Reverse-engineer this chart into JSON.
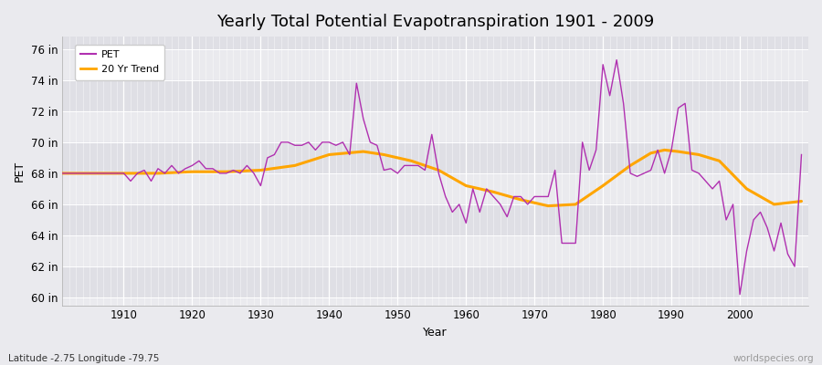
{
  "title": "Yearly Total Potential Evapotranspiration 1901 - 2009",
  "xlabel": "Year",
  "ylabel": "PET",
  "subtitle_left": "Latitude -2.75 Longitude -79.75",
  "subtitle_right": "worldspecies.org",
  "pet_color": "#b030b0",
  "trend_color": "#ffa500",
  "background_color": "#eaeaee",
  "plot_bg_color": "#eaeaee",
  "grid_color": "#ffffff",
  "ylim": [
    59.5,
    76.8
  ],
  "yticks": [
    60,
    62,
    64,
    66,
    68,
    70,
    72,
    74,
    76
  ],
  "ytick_labels": [
    "60 in",
    "62 in",
    "64 in",
    "66 in",
    "68 in",
    "70 in",
    "72 in",
    "74 in",
    "76 in"
  ],
  "years": [
    1901,
    1902,
    1903,
    1904,
    1905,
    1906,
    1907,
    1908,
    1909,
    1910,
    1911,
    1912,
    1913,
    1914,
    1915,
    1916,
    1917,
    1918,
    1919,
    1920,
    1921,
    1922,
    1923,
    1924,
    1925,
    1926,
    1927,
    1928,
    1929,
    1930,
    1931,
    1932,
    1933,
    1934,
    1935,
    1936,
    1937,
    1938,
    1939,
    1940,
    1941,
    1942,
    1943,
    1944,
    1945,
    1946,
    1947,
    1948,
    1949,
    1950,
    1951,
    1952,
    1953,
    1954,
    1955,
    1956,
    1957,
    1958,
    1959,
    1960,
    1961,
    1962,
    1963,
    1964,
    1965,
    1966,
    1967,
    1968,
    1969,
    1970,
    1971,
    1972,
    1973,
    1974,
    1975,
    1976,
    1977,
    1978,
    1979,
    1980,
    1981,
    1982,
    1983,
    1984,
    1985,
    1986,
    1987,
    1988,
    1989,
    1990,
    1991,
    1992,
    1993,
    1994,
    1995,
    1996,
    1997,
    1998,
    1999,
    2000,
    2001,
    2002,
    2003,
    2004,
    2005,
    2006,
    2007,
    2008,
    2009
  ],
  "pet_values": [
    68.0,
    68.0,
    68.0,
    68.0,
    68.0,
    68.0,
    68.0,
    68.0,
    68.0,
    68.0,
    67.5,
    68.0,
    68.2,
    67.5,
    68.3,
    68.0,
    68.5,
    68.0,
    68.3,
    68.5,
    68.8,
    68.3,
    68.3,
    68.0,
    68.0,
    68.2,
    68.0,
    68.5,
    68.0,
    67.2,
    69.0,
    69.2,
    70.0,
    70.0,
    69.8,
    69.8,
    70.0,
    69.5,
    70.0,
    70.0,
    69.8,
    70.0,
    69.2,
    73.8,
    71.5,
    70.0,
    69.8,
    68.2,
    68.3,
    68.0,
    68.5,
    68.5,
    68.5,
    68.2,
    70.5,
    68.0,
    66.5,
    65.5,
    66.0,
    64.8,
    67.0,
    65.5,
    67.0,
    66.5,
    66.0,
    65.2,
    66.5,
    66.5,
    66.0,
    66.5,
    66.5,
    66.5,
    68.2,
    63.5,
    63.5,
    63.5,
    70.0,
    68.2,
    69.5,
    75.0,
    73.0,
    75.3,
    72.5,
    68.0,
    67.8,
    68.0,
    68.2,
    69.5,
    68.0,
    69.5,
    72.2,
    72.5,
    68.2,
    68.0,
    67.5,
    67.0,
    67.5,
    65.0,
    66.0,
    60.2,
    63.0,
    65.0,
    65.5,
    64.5,
    63.0,
    64.8,
    62.8,
    62.0,
    69.2
  ],
  "trend_years": [
    1901,
    1905,
    1910,
    1915,
    1920,
    1925,
    1930,
    1935,
    1940,
    1945,
    1948,
    1952,
    1956,
    1960,
    1964,
    1968,
    1972,
    1976,
    1980,
    1984,
    1987,
    1989,
    1991,
    1994,
    1997,
    2001,
    2005,
    2009
  ],
  "trend_values": [
    68.0,
    68.0,
    68.0,
    68.0,
    68.1,
    68.1,
    68.2,
    68.5,
    69.2,
    69.4,
    69.2,
    68.8,
    68.2,
    67.2,
    66.8,
    66.3,
    65.9,
    66.0,
    67.2,
    68.5,
    69.3,
    69.5,
    69.4,
    69.2,
    68.8,
    67.0,
    66.0,
    66.2
  ]
}
